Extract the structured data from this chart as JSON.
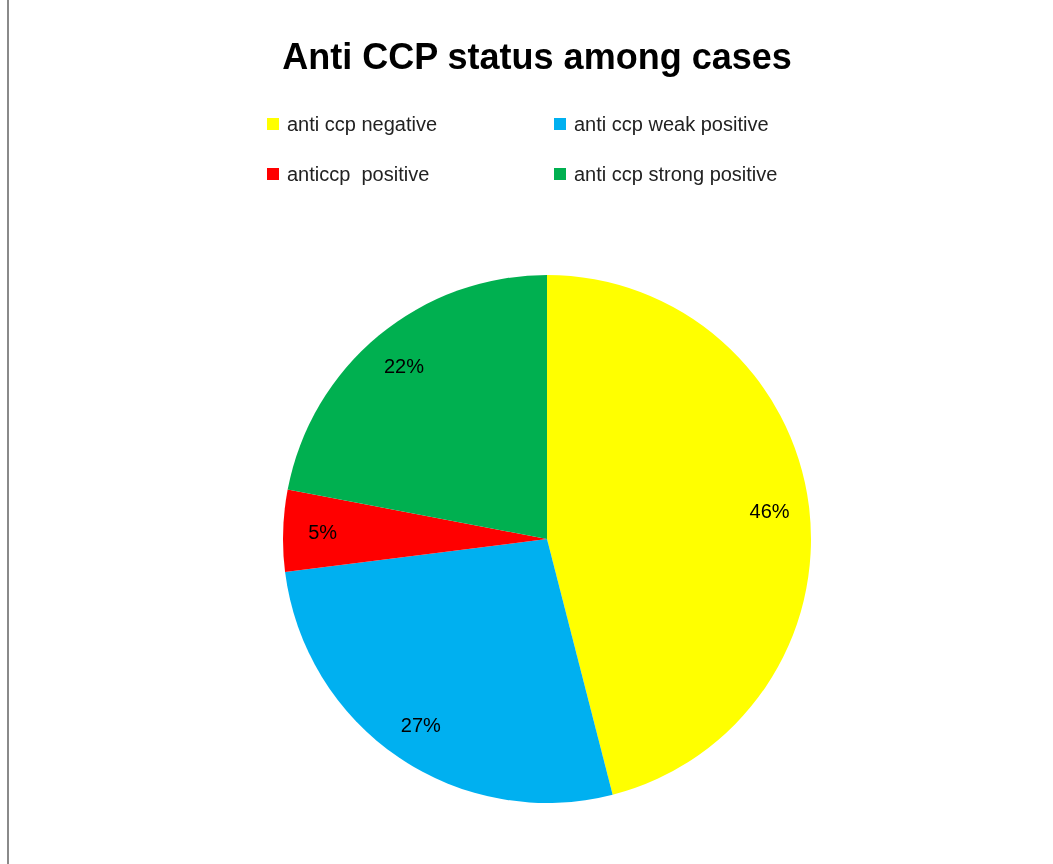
{
  "chart_data": {
    "type": "pie",
    "title": "Anti CCP status among cases",
    "categories": [
      "anti ccp negative",
      "anti ccp weak positive",
      "anticcp  positive",
      "anti ccp strong positive"
    ],
    "values": [
      46,
      27,
      5,
      22
    ],
    "colors": [
      "#ffff00",
      "#00b0f0",
      "#ff0000",
      "#00b050"
    ],
    "value_labels": [
      "46%",
      "27%",
      "5%",
      "22%"
    ],
    "legend": "top"
  }
}
